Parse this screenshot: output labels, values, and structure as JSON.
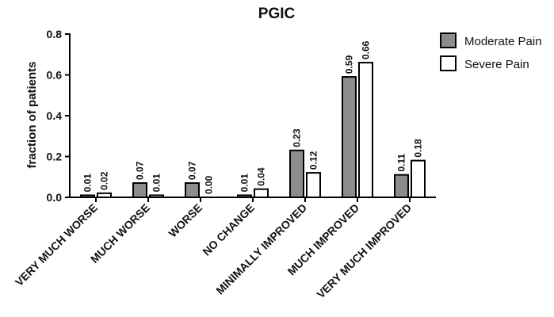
{
  "chart_data": {
    "type": "bar",
    "title": "PGIC",
    "xlabel": "",
    "ylabel": "fraction of patients",
    "ylim": [
      0,
      0.8
    ],
    "yticks": [
      "0.0",
      "0.2",
      "0.4",
      "0.6",
      "0.8"
    ],
    "grid": false,
    "legend_position": "top-right",
    "categories": [
      "VERY MUCH WORSE",
      "MUCH WORSE",
      "WORSE",
      "NO CHANGE",
      "MINIMALLY IMPROVED",
      "MUCH IMPROVED",
      "VERY MUCH IMPROVED"
    ],
    "series": [
      {
        "name": "Moderate Pain",
        "color": "#8c8c8c",
        "values": [
          0.01,
          0.07,
          0.07,
          0.01,
          0.23,
          0.59,
          0.11
        ],
        "labels": [
          "0.01",
          "0.07",
          "0.07",
          "0.01",
          "0.23",
          "0.59",
          "0.11"
        ]
      },
      {
        "name": "Severe Pain",
        "color": "#ffffff",
        "values": [
          0.02,
          0.01,
          0.0,
          0.04,
          0.12,
          0.66,
          0.18
        ],
        "labels": [
          "0.02",
          "0.01",
          "0.00",
          "0.04",
          "0.12",
          "0.66",
          "0.18"
        ]
      }
    ]
  }
}
